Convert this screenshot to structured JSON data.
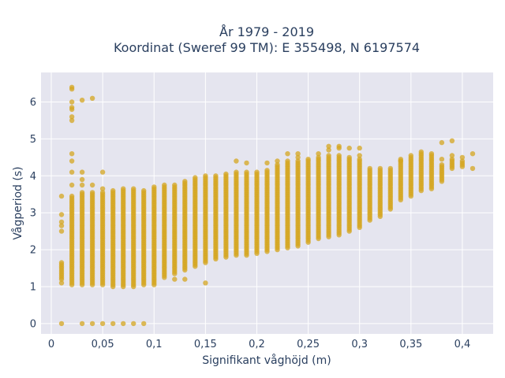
{
  "chart_data": {
    "type": "scatter",
    "title_line1": "År 1979 - 2019",
    "title_line2": "Koordinat (Sweref 99 TM): E 355498, N 6197574",
    "xlabel": "Signifikant våghöjd (m)",
    "ylabel": "Vågperiod (s)",
    "xlim": [
      -0.01,
      0.43
    ],
    "ylim": [
      -0.28,
      6.8
    ],
    "x_ticks": [
      0,
      0.05,
      0.1,
      0.15,
      0.2,
      0.25,
      0.3,
      0.35,
      0.4
    ],
    "x_tick_labels": [
      "0",
      "0,05",
      "0,1",
      "0,15",
      "0,2",
      "0,25",
      "0,3",
      "0,35",
      "0,4"
    ],
    "y_ticks": [
      0,
      1,
      2,
      3,
      4,
      5,
      6
    ],
    "y_tick_labels": [
      "0",
      "1",
      "2",
      "3",
      "4",
      "5",
      "6"
    ],
    "grid": true,
    "plot_bgcolor": "#e5e5ef",
    "marker_color": "#d4a520",
    "series": [
      {
        "ranges": [
          {
            "x": 0.01,
            "ymin": 1.2,
            "ymax": 1.65
          },
          {
            "x": 0.02,
            "ymin": 1.05,
            "ymax": 3.45
          },
          {
            "x": 0.03,
            "ymin": 1.05,
            "ymax": 3.55
          },
          {
            "x": 0.04,
            "ymin": 1.05,
            "ymax": 3.55
          },
          {
            "x": 0.05,
            "ymin": 1.05,
            "ymax": 3.55
          },
          {
            "x": 0.06,
            "ymin": 1.0,
            "ymax": 3.6
          },
          {
            "x": 0.07,
            "ymin": 1.0,
            "ymax": 3.65
          },
          {
            "x": 0.08,
            "ymin": 1.0,
            "ymax": 3.65
          },
          {
            "x": 0.09,
            "ymin": 1.05,
            "ymax": 3.6
          },
          {
            "x": 0.1,
            "ymin": 1.05,
            "ymax": 3.7
          },
          {
            "x": 0.11,
            "ymin": 1.3,
            "ymax": 3.75
          },
          {
            "x": 0.12,
            "ymin": 1.35,
            "ymax": 3.75
          },
          {
            "x": 0.13,
            "ymin": 1.45,
            "ymax": 3.85
          },
          {
            "x": 0.14,
            "ymin": 1.55,
            "ymax": 3.95
          },
          {
            "x": 0.15,
            "ymin": 1.65,
            "ymax": 4.0
          },
          {
            "x": 0.16,
            "ymin": 1.75,
            "ymax": 4.0
          },
          {
            "x": 0.17,
            "ymin": 1.8,
            "ymax": 4.05
          },
          {
            "x": 0.18,
            "ymin": 1.85,
            "ymax": 4.1
          },
          {
            "x": 0.19,
            "ymin": 1.85,
            "ymax": 4.1
          },
          {
            "x": 0.2,
            "ymin": 1.9,
            "ymax": 4.1
          },
          {
            "x": 0.21,
            "ymin": 1.95,
            "ymax": 4.15
          },
          {
            "x": 0.22,
            "ymin": 2.0,
            "ymax": 4.3
          },
          {
            "x": 0.23,
            "ymin": 2.05,
            "ymax": 4.4
          },
          {
            "x": 0.24,
            "ymin": 2.1,
            "ymax": 4.4
          },
          {
            "x": 0.25,
            "ymin": 2.2,
            "ymax": 4.45
          },
          {
            "x": 0.26,
            "ymin": 2.3,
            "ymax": 4.5
          },
          {
            "x": 0.27,
            "ymin": 2.35,
            "ymax": 4.55
          },
          {
            "x": 0.28,
            "ymin": 2.4,
            "ymax": 4.55
          },
          {
            "x": 0.29,
            "ymin": 2.5,
            "ymax": 4.5
          },
          {
            "x": 0.3,
            "ymin": 2.6,
            "ymax": 4.45
          },
          {
            "x": 0.31,
            "ymin": 2.8,
            "ymax": 4.2
          },
          {
            "x": 0.32,
            "ymin": 2.9,
            "ymax": 4.2
          },
          {
            "x": 0.33,
            "ymin": 3.1,
            "ymax": 4.2
          },
          {
            "x": 0.34,
            "ymin": 3.35,
            "ymax": 4.45
          },
          {
            "x": 0.35,
            "ymin": 3.45,
            "ymax": 4.5
          },
          {
            "x": 0.36,
            "ymin": 3.6,
            "ymax": 4.6
          },
          {
            "x": 0.37,
            "ymin": 3.65,
            "ymax": 4.55
          },
          {
            "x": 0.38,
            "ymin": 3.85,
            "ymax": 4.3
          },
          {
            "x": 0.39,
            "ymin": 4.2,
            "ymax": 4.45
          },
          {
            "x": 0.4,
            "ymin": 4.25,
            "ymax": 4.4
          }
        ],
        "points": [
          [
            0.01,
            0.0
          ],
          [
            0.01,
            1.1
          ],
          [
            0.01,
            2.5
          ],
          [
            0.01,
            2.65
          ],
          [
            0.01,
            2.75
          ],
          [
            0.01,
            2.95
          ],
          [
            0.01,
            3.45
          ],
          [
            0.02,
            6.35
          ],
          [
            0.02,
            6.4
          ],
          [
            0.02,
            6.0
          ],
          [
            0.02,
            5.85
          ],
          [
            0.02,
            5.8
          ],
          [
            0.02,
            5.6
          ],
          [
            0.02,
            5.5
          ],
          [
            0.02,
            4.6
          ],
          [
            0.02,
            4.4
          ],
          [
            0.02,
            4.1
          ],
          [
            0.02,
            3.75
          ],
          [
            0.03,
            6.05
          ],
          [
            0.03,
            4.1
          ],
          [
            0.03,
            3.9
          ],
          [
            0.03,
            3.75
          ],
          [
            0.03,
            0.0
          ],
          [
            0.04,
            6.1
          ],
          [
            0.04,
            3.75
          ],
          [
            0.04,
            0.0
          ],
          [
            0.05,
            4.1
          ],
          [
            0.05,
            3.65
          ],
          [
            0.05,
            0.0
          ],
          [
            0.06,
            0.0
          ],
          [
            0.07,
            0.0
          ],
          [
            0.08,
            0.0
          ],
          [
            0.09,
            0.0
          ],
          [
            0.11,
            1.25
          ],
          [
            0.12,
            1.2
          ],
          [
            0.13,
            1.2
          ],
          [
            0.15,
            1.1
          ],
          [
            0.18,
            4.4
          ],
          [
            0.19,
            4.35
          ],
          [
            0.21,
            4.35
          ],
          [
            0.22,
            4.4
          ],
          [
            0.23,
            4.6
          ],
          [
            0.24,
            4.6
          ],
          [
            0.24,
            4.5
          ],
          [
            0.26,
            4.6
          ],
          [
            0.27,
            4.8
          ],
          [
            0.27,
            4.7
          ],
          [
            0.28,
            4.8
          ],
          [
            0.28,
            4.75
          ],
          [
            0.29,
            4.75
          ],
          [
            0.3,
            4.75
          ],
          [
            0.3,
            4.55
          ],
          [
            0.34,
            4.4
          ],
          [
            0.35,
            4.55
          ],
          [
            0.36,
            4.65
          ],
          [
            0.37,
            4.6
          ],
          [
            0.38,
            4.9
          ],
          [
            0.38,
            4.45
          ],
          [
            0.39,
            4.95
          ],
          [
            0.39,
            4.55
          ],
          [
            0.4,
            4.5
          ],
          [
            0.41,
            4.6
          ],
          [
            0.41,
            4.2
          ]
        ]
      }
    ]
  }
}
